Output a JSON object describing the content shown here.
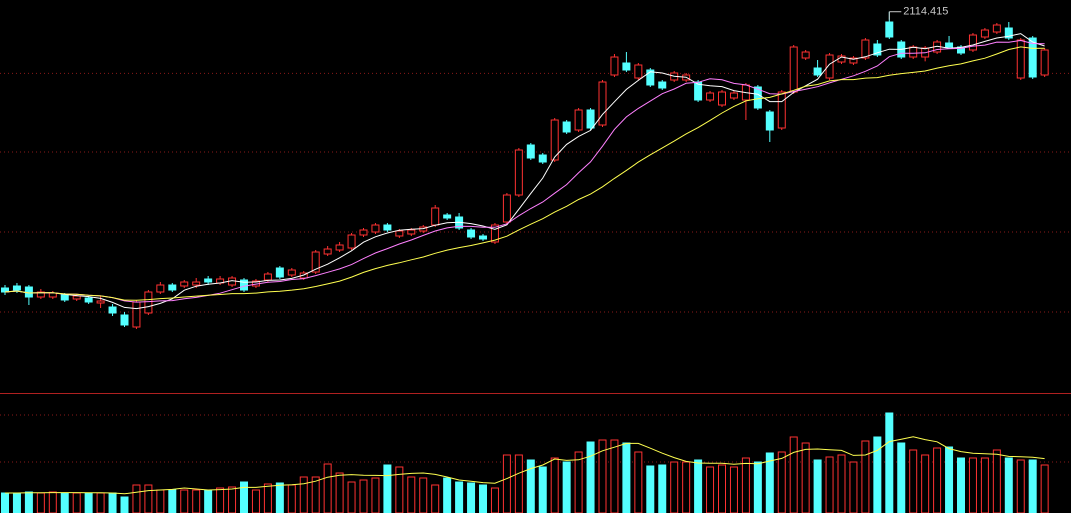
{
  "chart_data": {
    "type": "candlestick",
    "open": [
      1700,
      1703,
      1701.5,
      1686.5,
      1686.5,
      1689.5,
      1683.5,
      1685,
      1677.5,
      1671.5,
      1659.5,
      1641.5,
      1662.5,
      1694,
      1704.5,
      1703,
      1704.5,
      1713.5,
      1707.5,
      1704.5,
      1712,
      1703,
      1712,
      1730,
      1719.5,
      1715,
      1724,
      1751,
      1757,
      1760,
      1779.5,
      1784,
      1794.5,
      1778,
      1781,
      1785.5,
      1794.5,
      1809.5,
      1806.5,
      1787,
      1778,
      1769,
      1799,
      1839.5,
      1914.5,
      1899.5,
      1892,
      1949,
      1937,
      1967,
      1944.5,
      2019.5,
      2037.5,
      2015,
      2027,
      2009,
      2012,
      2012,
      2009,
      1982,
      1974.5,
      1985,
      1982,
      2001.5,
      1964,
      1940,
      1994,
      2045,
      2030,
      2015,
      2039,
      2037.5,
      2045,
      2066,
      2099,
      2069,
      2046.5,
      2046.5,
      2054,
      2067.5,
      2061.5,
      2057,
      2076.5,
      2084,
      2090,
      2015,
      2075,
      2019.5
    ],
    "high": [
      1704.5,
      1707.5,
      1704.5,
      1698.5,
      1695.5,
      1692.5,
      1691,
      1688,
      1688,
      1676,
      1664,
      1682,
      1697,
      1709,
      1707.5,
      1712,
      1715,
      1718,
      1718,
      1718,
      1715,
      1713.5,
      1724,
      1733,
      1730,
      1725.5,
      1757,
      1763,
      1769,
      1782.5,
      1790,
      1797.5,
      1797.5,
      1788.5,
      1790,
      1794.5,
      1824.5,
      1812.5,
      1812.5,
      1790,
      1781,
      1797.5,
      1842.5,
      1910,
      1917.5,
      1902.5,
      1955,
      1952,
      1970,
      1970,
      2012,
      2051,
      2054,
      2037.5,
      2030,
      2012,
      2025.5,
      2022.5,
      2012,
      1995.5,
      1997,
      1995.5,
      2007.5,
      2004.5,
      1967,
      1997,
      2064.5,
      2057,
      2042,
      2052.5,
      2051,
      2048,
      2075,
      2072,
      2114.415,
      2072,
      2064.5,
      2063,
      2072,
      2078,
      2064.5,
      2082.5,
      2090,
      2097.5,
      2099,
      2075,
      2078,
      2060
    ],
    "low": [
      1689.5,
      1692.5,
      1674.5,
      1683.5,
      1683.5,
      1679,
      1680.5,
      1676,
      1670,
      1658,
      1641.5,
      1638.5,
      1659.5,
      1691,
      1694,
      1700,
      1700,
      1704.5,
      1704.5,
      1701.5,
      1694,
      1700,
      1709,
      1713.5,
      1716.5,
      1712,
      1721,
      1748,
      1754,
      1757,
      1776.5,
      1781,
      1784,
      1775,
      1778,
      1782.5,
      1791.5,
      1802,
      1787,
      1773.5,
      1770.5,
      1766,
      1796,
      1836.5,
      1892,
      1886,
      1889,
      1931,
      1934,
      1937,
      1941.5,
      2016.5,
      2024,
      2012,
      2001.5,
      1997,
      2009,
      2009,
      1979,
      1979,
      1971.5,
      1982,
      1952,
      1967,
      1919,
      1937,
      1991,
      2042,
      2016.5,
      2012,
      2036,
      2034.5,
      2042,
      2046.5,
      2073.5,
      2043.5,
      2043.5,
      2040,
      2051,
      2058.5,
      2049.5,
      2054,
      2073.5,
      2081,
      2072,
      2012,
      2013.5,
      2016.5
    ],
    "close": [
      1694,
      1697,
      1686.5,
      1694,
      1692.5,
      1682,
      1688,
      1679,
      1680.5,
      1662.5,
      1644.5,
      1679,
      1694,
      1704.5,
      1697,
      1709,
      1709,
      1709,
      1713.5,
      1715,
      1697,
      1710.5,
      1721,
      1716.5,
      1727,
      1722.5,
      1754,
      1758.5,
      1764.5,
      1779.5,
      1787,
      1794.5,
      1787,
      1785.5,
      1787,
      1791.5,
      1820,
      1805,
      1790,
      1776.5,
      1773.5,
      1794.5,
      1839.5,
      1907,
      1895,
      1889,
      1952,
      1934,
      1967,
      1940,
      2009,
      2046.5,
      2027,
      2034.5,
      2004.5,
      2000,
      2022.5,
      2019.5,
      1982,
      1992.5,
      1994,
      1992.5,
      2004.5,
      1970,
      1937,
      1994,
      2061.5,
      2054,
      2019.5,
      2049.5,
      2048,
      2045,
      2072,
      2049.5,
      2076.5,
      2046.5,
      2061.5,
      2060,
      2069,
      2061.5,
      2052.5,
      2079.5,
      2087,
      2094.5,
      2075,
      2072,
      2016.5,
      2057
    ],
    "ylim": [
      1547,
      2132
    ],
    "yticks": [
      2022,
      1904,
      1784,
      1664
    ],
    "grid": true,
    "up_color": "#ff3232",
    "down_color": "#54ffff",
    "moving_averages": [
      {
        "period": 5,
        "color": "#ffffff"
      },
      {
        "period": 10,
        "color": "#ff80ff"
      },
      {
        "period": 20,
        "color": "#ffff50"
      }
    ],
    "annotation": {
      "label": "2114.415",
      "value": 2114.415
    },
    "volume": {
      "values": [
        20,
        20,
        21,
        20,
        21,
        20,
        20,
        20,
        20,
        20,
        16,
        28,
        28,
        23,
        23,
        23,
        23,
        23,
        25,
        26,
        31,
        23,
        29,
        30,
        28,
        36,
        36,
        49,
        40,
        31,
        33,
        35,
        48,
        46,
        36,
        35,
        28,
        35,
        31,
        30,
        28,
        25,
        58,
        58,
        53,
        46,
        55,
        51,
        61,
        71,
        73,
        73,
        70,
        61,
        47,
        48,
        51,
        51,
        53,
        46,
        48,
        46,
        55,
        51,
        60,
        61,
        76,
        70,
        53,
        56,
        58,
        51,
        72,
        76,
        100,
        70,
        63,
        58,
        65,
        66,
        55,
        55,
        55,
        63,
        55,
        53,
        53,
        48
      ],
      "ylim": [
        0,
        118
      ],
      "yticks": [
        51,
        98
      ],
      "ma_period": 5,
      "ma_color": "#ffff50"
    }
  }
}
